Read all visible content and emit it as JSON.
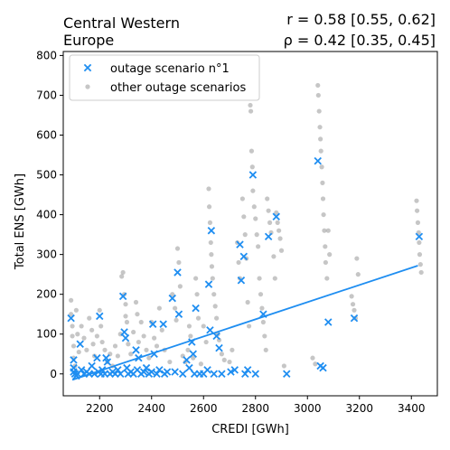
{
  "chart_data": {
    "type": "scatter",
    "title_left_lines": [
      "Central Western",
      "Europe"
    ],
    "stat_r": "r = 0.58 [0.55, 0.62]",
    "stat_rho": "ρ = 0.42 [0.35, 0.45]",
    "xlabel": "CREDI [GWh]",
    "ylabel": "Total ENS [GWh]",
    "xlim": [
      2060,
      3500
    ],
    "ylim": [
      -55,
      810
    ],
    "xticks": [
      2200,
      2400,
      2600,
      2800,
      3000,
      3200,
      3400
    ],
    "yticks": [
      0,
      100,
      200,
      300,
      400,
      500,
      600,
      700,
      800
    ],
    "grid": false,
    "legend_position": "top-left",
    "colors": {
      "scenario1": "#1f8ef1",
      "other": "#a0a0a0",
      "fit": "#1f8ef1"
    },
    "series": [
      {
        "name": "outage scenario n°1",
        "marker": "x",
        "points": [
          [
            2090,
            140
          ],
          [
            2100,
            35
          ],
          [
            2100,
            15
          ],
          [
            2100,
            5
          ],
          [
            2105,
            0
          ],
          [
            2110,
            -5
          ],
          [
            2115,
            0
          ],
          [
            2125,
            75
          ],
          [
            2130,
            10
          ],
          [
            2140,
            0
          ],
          [
            2150,
            5
          ],
          [
            2160,
            0
          ],
          [
            2170,
            20
          ],
          [
            2180,
            0
          ],
          [
            2190,
            40
          ],
          [
            2195,
            5
          ],
          [
            2200,
            145
          ],
          [
            2205,
            0
          ],
          [
            2210,
            10
          ],
          [
            2220,
            0
          ],
          [
            2225,
            40
          ],
          [
            2230,
            30
          ],
          [
            2240,
            0
          ],
          [
            2250,
            5
          ],
          [
            2260,
            0
          ],
          [
            2270,
            10
          ],
          [
            2280,
            0
          ],
          [
            2290,
            195
          ],
          [
            2295,
            105
          ],
          [
            2300,
            90
          ],
          [
            2305,
            15
          ],
          [
            2310,
            0
          ],
          [
            2320,
            5
          ],
          [
            2330,
            0
          ],
          [
            2340,
            60
          ],
          [
            2345,
            10
          ],
          [
            2350,
            40
          ],
          [
            2360,
            0
          ],
          [
            2370,
            5
          ],
          [
            2380,
            15
          ],
          [
            2390,
            0
          ],
          [
            2400,
            5
          ],
          [
            2405,
            125
          ],
          [
            2410,
            50
          ],
          [
            2420,
            0
          ],
          [
            2430,
            10
          ],
          [
            2445,
            125
          ],
          [
            2450,
            0
          ],
          [
            2460,
            5
          ],
          [
            2480,
            190
          ],
          [
            2490,
            5
          ],
          [
            2500,
            255
          ],
          [
            2505,
            150
          ],
          [
            2520,
            0
          ],
          [
            2535,
            35
          ],
          [
            2545,
            15
          ],
          [
            2555,
            80
          ],
          [
            2560,
            50
          ],
          [
            2565,
            0
          ],
          [
            2570,
            165
          ],
          [
            2585,
            0
          ],
          [
            2600,
            0
          ],
          [
            2615,
            10
          ],
          [
            2620,
            225
          ],
          [
            2625,
            110
          ],
          [
            2630,
            360
          ],
          [
            2640,
            0
          ],
          [
            2650,
            95
          ],
          [
            2660,
            65
          ],
          [
            2670,
            0
          ],
          [
            2705,
            5
          ],
          [
            2720,
            10
          ],
          [
            2740,
            325
          ],
          [
            2745,
            235
          ],
          [
            2755,
            295
          ],
          [
            2760,
            0
          ],
          [
            2770,
            10
          ],
          [
            2790,
            500
          ],
          [
            2800,
            0
          ],
          [
            2830,
            150
          ],
          [
            2850,
            345
          ],
          [
            2880,
            395
          ],
          [
            2920,
            0
          ],
          [
            3040,
            535
          ],
          [
            3050,
            20
          ],
          [
            3060,
            15
          ],
          [
            3080,
            130
          ],
          [
            3180,
            140
          ],
          [
            3430,
            345
          ]
        ]
      },
      {
        "name": "other outage scenarios",
        "marker": "o",
        "points": [
          [
            2090,
            185
          ],
          [
            2090,
            150
          ],
          [
            2095,
            120
          ],
          [
            2095,
            95
          ],
          [
            2100,
            70
          ],
          [
            2100,
            40
          ],
          [
            2105,
            20
          ],
          [
            2110,
            160
          ],
          [
            2115,
            100
          ],
          [
            2120,
            55
          ],
          [
            2130,
            120
          ],
          [
            2140,
            90
          ],
          [
            2150,
            60
          ],
          [
            2160,
            140
          ],
          [
            2170,
            110
          ],
          [
            2175,
            75
          ],
          [
            2180,
            45
          ],
          [
            2190,
            95
          ],
          [
            2200,
            160
          ],
          [
            2205,
            120
          ],
          [
            2210,
            80
          ],
          [
            2220,
            60
          ],
          [
            2230,
            30
          ],
          [
            2240,
            50
          ],
          [
            2250,
            20
          ],
          [
            2260,
            70
          ],
          [
            2270,
            45
          ],
          [
            2280,
            100
          ],
          [
            2285,
            245
          ],
          [
            2290,
            255
          ],
          [
            2295,
            200
          ],
          [
            2300,
            175
          ],
          [
            2300,
            145
          ],
          [
            2305,
            130
          ],
          [
            2310,
            75
          ],
          [
            2320,
            50
          ],
          [
            2330,
            105
          ],
          [
            2340,
            180
          ],
          [
            2345,
            150
          ],
          [
            2350,
            80
          ],
          [
            2360,
            130
          ],
          [
            2370,
            95
          ],
          [
            2380,
            60
          ],
          [
            2390,
            40
          ],
          [
            2400,
            130
          ],
          [
            2410,
            90
          ],
          [
            2420,
            70
          ],
          [
            2430,
            165
          ],
          [
            2440,
            110
          ],
          [
            2450,
            60
          ],
          [
            2470,
            30
          ],
          [
            2480,
            200
          ],
          [
            2490,
            165
          ],
          [
            2495,
            135
          ],
          [
            2500,
            315
          ],
          [
            2505,
            280
          ],
          [
            2510,
            220
          ],
          [
            2520,
            45
          ],
          [
            2530,
            30
          ],
          [
            2540,
            60
          ],
          [
            2545,
            120
          ],
          [
            2550,
            95
          ],
          [
            2560,
            40
          ],
          [
            2570,
            240
          ],
          [
            2575,
            200
          ],
          [
            2580,
            140
          ],
          [
            2590,
            25
          ],
          [
            2600,
            120
          ],
          [
            2610,
            80
          ],
          [
            2620,
            465
          ],
          [
            2622,
            420
          ],
          [
            2625,
            380
          ],
          [
            2628,
            330
          ],
          [
            2630,
            300
          ],
          [
            2632,
            270
          ],
          [
            2635,
            240
          ],
          [
            2640,
            200
          ],
          [
            2645,
            170
          ],
          [
            2650,
            140
          ],
          [
            2655,
            100
          ],
          [
            2660,
            85
          ],
          [
            2670,
            50
          ],
          [
            2680,
            35
          ],
          [
            2700,
            30
          ],
          [
            2710,
            60
          ],
          [
            2730,
            330
          ],
          [
            2735,
            280
          ],
          [
            2740,
            240
          ],
          [
            2750,
            440
          ],
          [
            2755,
            395
          ],
          [
            2760,
            350
          ],
          [
            2765,
            290
          ],
          [
            2770,
            180
          ],
          [
            2775,
            120
          ],
          [
            2780,
            675
          ],
          [
            2782,
            660
          ],
          [
            2785,
            560
          ],
          [
            2788,
            520
          ],
          [
            2790,
            460
          ],
          [
            2795,
            420
          ],
          [
            2800,
            390
          ],
          [
            2805,
            350
          ],
          [
            2810,
            320
          ],
          [
            2815,
            240
          ],
          [
            2820,
            200
          ],
          [
            2825,
            165
          ],
          [
            2830,
            130
          ],
          [
            2835,
            95
          ],
          [
            2840,
            60
          ],
          [
            2845,
            440
          ],
          [
            2850,
            410
          ],
          [
            2855,
            380
          ],
          [
            2860,
            355
          ],
          [
            2870,
            295
          ],
          [
            2875,
            240
          ],
          [
            2880,
            405
          ],
          [
            2885,
            380
          ],
          [
            2890,
            360
          ],
          [
            2895,
            340
          ],
          [
            2900,
            310
          ],
          [
            2910,
            20
          ],
          [
            3020,
            40
          ],
          [
            3030,
            25
          ],
          [
            3040,
            725
          ],
          [
            3042,
            700
          ],
          [
            3045,
            660
          ],
          [
            3048,
            620
          ],
          [
            3050,
            590
          ],
          [
            3052,
            560
          ],
          [
            3055,
            520
          ],
          [
            3058,
            480
          ],
          [
            3060,
            440
          ],
          [
            3062,
            400
          ],
          [
            3065,
            360
          ],
          [
            3068,
            320
          ],
          [
            3070,
            280
          ],
          [
            3075,
            240
          ],
          [
            3080,
            360
          ],
          [
            3085,
            300
          ],
          [
            3170,
            195
          ],
          [
            3175,
            175
          ],
          [
            3180,
            160
          ],
          [
            3185,
            140
          ],
          [
            3190,
            290
          ],
          [
            3195,
            250
          ],
          [
            3420,
            435
          ],
          [
            3422,
            410
          ],
          [
            3425,
            380
          ],
          [
            3428,
            355
          ],
          [
            3430,
            330
          ],
          [
            3432,
            300
          ],
          [
            3435,
            275
          ],
          [
            3438,
            255
          ]
        ]
      }
    ],
    "fit_line": {
      "x": [
        2095,
        3425
      ],
      "y": [
        -15,
        272
      ]
    }
  }
}
